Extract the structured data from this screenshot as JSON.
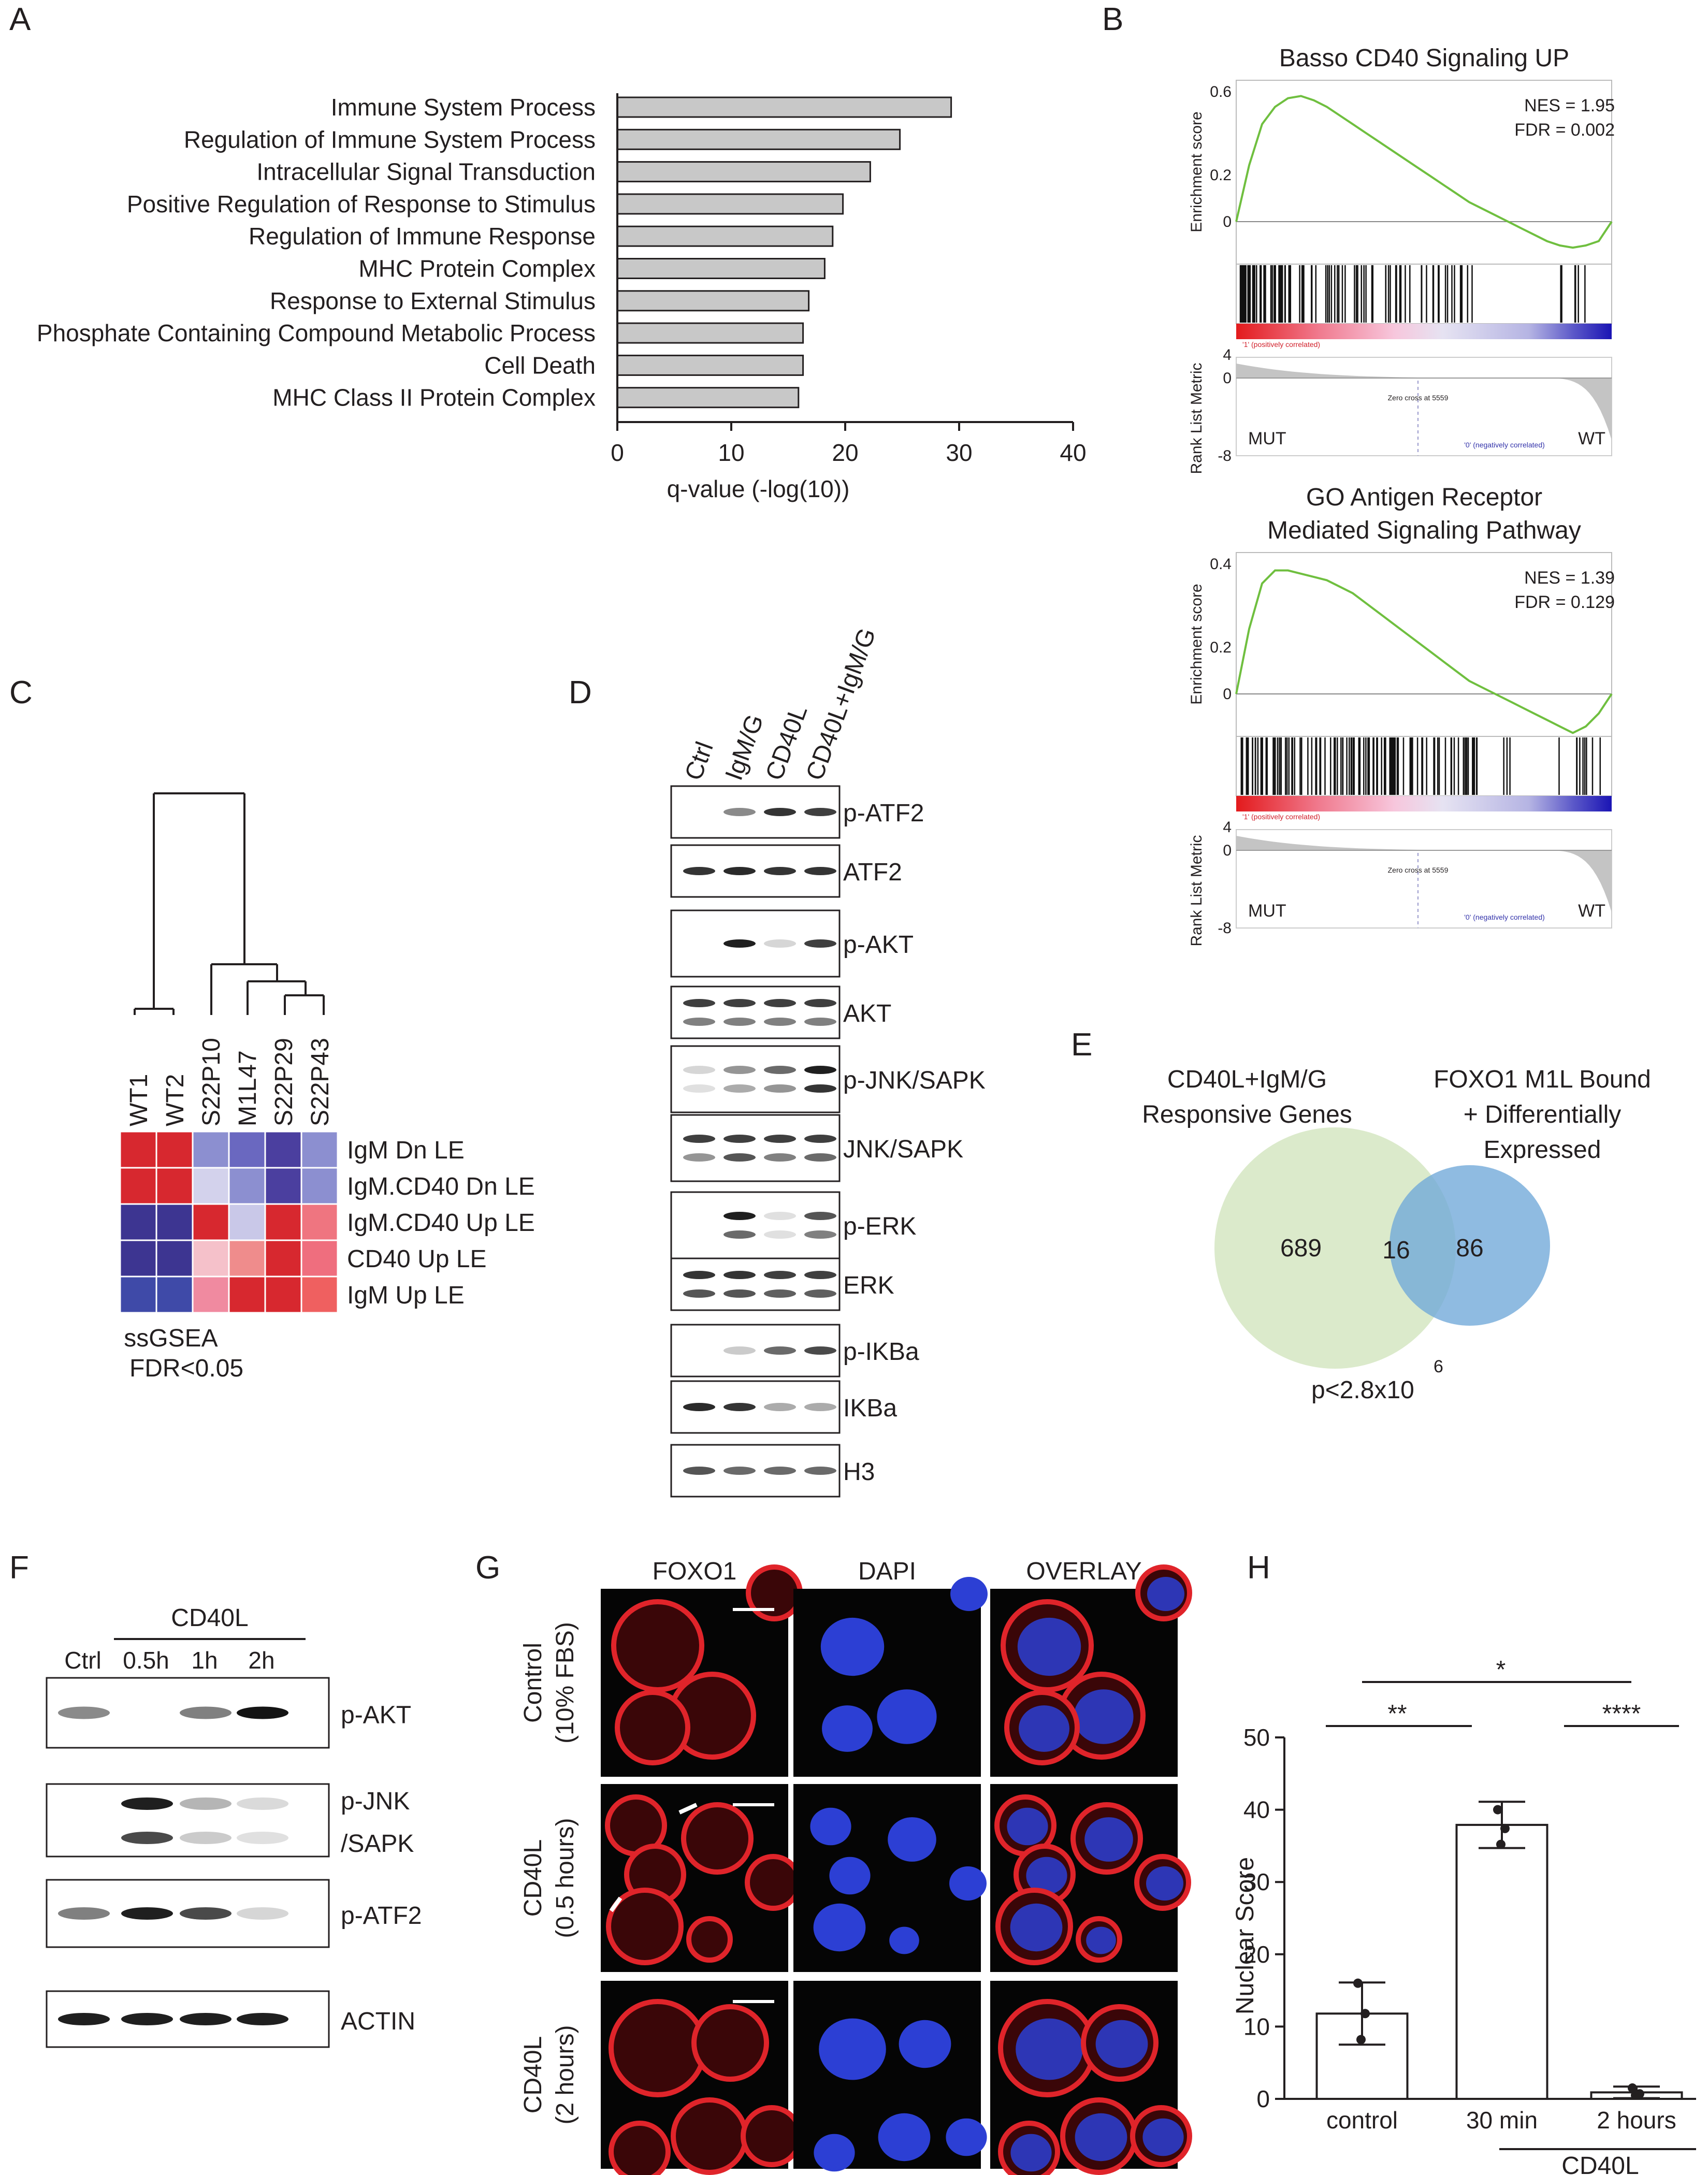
{
  "panel_labels": [
    "A",
    "B",
    "C",
    "D",
    "E",
    "F",
    "G",
    "H"
  ],
  "panel_a": {
    "xlabel": "q-value  (-log(10))",
    "chart_data": {
      "type": "bar",
      "orientation": "horizontal",
      "categories": [
        "Immune System Process",
        "Regulation of Immune System Process",
        "Intracellular Signal Transduction",
        "Positive Regulation of Response to Stimulus",
        "Regulation of Immune Response",
        "MHC Protein Complex",
        "Response to External Stimulus",
        "Phosphate Containing Compound Metabolic Process",
        "Cell Death",
        "MHC Class II Protein Complex"
      ],
      "values": [
        29.3,
        24.8,
        22.2,
        19.8,
        18.9,
        18.2,
        16.8,
        16.3,
        16.3,
        15.9
      ],
      "xlabel": "q-value  (-log(10))",
      "xlim": [
        0,
        40
      ],
      "xticks": [
        "0",
        "10",
        "20",
        "30",
        "40"
      ],
      "bar_color": "#c8c8c8"
    }
  },
  "panel_b": {
    "plots": [
      {
        "title_lines": [
          "Basso CD40 Signaling UP"
        ],
        "nes": "NES = 1.95",
        "fdr": "FDR = 0.002",
        "es_label": "Enrichment score",
        "es_ticks": [
          "0.6",
          "0.2",
          "0"
        ],
        "es_max": 0.6,
        "rank_label": "Rank List Metric",
        "rank_ticks": [
          "4",
          "0",
          "-8"
        ],
        "pos_label": "'1' (positively correlated)",
        "neg_label": "'0' (negatively correlated)",
        "zero_cross": "Zero cross at 5559",
        "left": "MUT",
        "right": "WT",
        "curve_es": [
          0,
          0.26,
          0.45,
          0.53,
          0.57,
          0.58,
          0.56,
          0.53,
          0.49,
          0.45,
          0.41,
          0.37,
          0.33,
          0.29,
          0.25,
          0.21,
          0.17,
          0.13,
          0.09,
          0.06,
          0.03,
          0.0,
          -0.03,
          -0.06,
          -0.09,
          -0.11,
          -0.12,
          -0.11,
          -0.09,
          0.0
        ],
        "curve_color": "#6fbf3f"
      },
      {
        "title_lines": [
          "GO Antigen Receptor",
          "Mediated Signaling Pathway"
        ],
        "nes": "NES = 1.39",
        "fdr": "FDR = 0.129",
        "es_label": "Enrichment score",
        "es_ticks": [
          "0.4",
          "0.2",
          "0"
        ],
        "es_max": 0.4,
        "rank_label": "Rank List Metric",
        "rank_ticks": [
          "4",
          "0",
          "-8"
        ],
        "pos_label": "'1' (positively correlated)",
        "neg_label": "'0' (negatively correlated)",
        "zero_cross": "Zero cross at 5559",
        "left": "MUT",
        "right": "WT",
        "curve_es": [
          0,
          0.2,
          0.34,
          0.38,
          0.38,
          0.37,
          0.36,
          0.35,
          0.33,
          0.31,
          0.28,
          0.25,
          0.22,
          0.19,
          0.16,
          0.13,
          0.1,
          0.07,
          0.04,
          0.02,
          0.0,
          -0.02,
          -0.04,
          -0.06,
          -0.08,
          -0.1,
          -0.12,
          -0.1,
          -0.06,
          0.0
        ],
        "curve_color": "#6fbf3f"
      }
    ]
  },
  "panel_c": {
    "columns": [
      "WT1",
      "WT2",
      "S22P10",
      "M1L47",
      "S22P29",
      "S22P43"
    ],
    "rows": [
      "IgM Dn LE",
      "IgM.CD40 Dn LE",
      "IgM.CD40 Up LE",
      "CD40 Up LE",
      "IgM Up LE"
    ],
    "heat_colors": [
      [
        "#d7282f",
        "#d7282f",
        "#8c8fd0",
        "#6a68c0",
        "#4b3f9f",
        "#8c8fd0"
      ],
      [
        "#d7282f",
        "#d7282f",
        "#d3d2ec",
        "#8c8fd0",
        "#4b3f9f",
        "#8c8fd0"
      ],
      [
        "#3d3591",
        "#3d3591",
        "#d7282f",
        "#c9c8e8",
        "#d7282f",
        "#ef7580"
      ],
      [
        "#3d3591",
        "#3d3591",
        "#f5c1ca",
        "#ef8c8c",
        "#d7282f",
        "#ef6e7e"
      ],
      [
        "#3f4aa8",
        "#3f4aa8",
        "#f08aa0",
        "#d7282f",
        "#d7282f",
        "#ef6060"
      ]
    ],
    "caption_lines": [
      "ssGSEA",
      "FDR<0.05"
    ]
  },
  "panel_d": {
    "lanes": [
      "Ctrl",
      "IgM/G",
      "CD40L",
      "CD40L+IgM/G"
    ],
    "blots": [
      {
        "label": "p-ATF2",
        "bands": [
          [
            0,
            0.45,
            0.85,
            0.8
          ]
        ]
      },
      {
        "label": "ATF2",
        "bands": [
          [
            0.85,
            0.9,
            0.85,
            0.85
          ]
        ]
      },
      {
        "label": "p-AKT",
        "bands": [
          [
            0,
            0.95,
            0.1,
            0.8
          ]
        ]
      },
      {
        "label": "AKT",
        "bands": [
          [
            0.8,
            0.8,
            0.8,
            0.8
          ],
          [
            0.5,
            0.5,
            0.5,
            0.5
          ]
        ]
      },
      {
        "label": "p-JNK/SAPK",
        "bands": [
          [
            0.1,
            0.4,
            0.6,
            0.95
          ],
          [
            0.05,
            0.3,
            0.4,
            0.85
          ]
        ]
      },
      {
        "label": "JNK/SAPK",
        "bands": [
          [
            0.8,
            0.8,
            0.8,
            0.8
          ],
          [
            0.4,
            0.7,
            0.5,
            0.6
          ]
        ]
      },
      {
        "label": "p-ERK",
        "bands": [
          [
            0,
            0.95,
            0.05,
            0.7
          ],
          [
            0,
            0.6,
            0.05,
            0.5
          ]
        ]
      },
      {
        "label": "ERK",
        "bands": [
          [
            0.85,
            0.85,
            0.8,
            0.8
          ],
          [
            0.7,
            0.7,
            0.65,
            0.65
          ]
        ]
      },
      {
        "label": "p-IKBa",
        "bands": [
          [
            0,
            0.15,
            0.6,
            0.75
          ]
        ]
      },
      {
        "label": "IKBa",
        "bands": [
          [
            0.9,
            0.85,
            0.3,
            0.3
          ]
        ]
      },
      {
        "label": "H3",
        "bands": [
          [
            0.7,
            0.6,
            0.6,
            0.6
          ]
        ]
      }
    ]
  },
  "panel_e": {
    "left_title_lines": [
      "CD40L+IgM/G",
      "Responsive Genes"
    ],
    "right_title_lines": [
      "FOXO1 M1L Bound",
      "+ Differentially",
      "Expressed"
    ],
    "left_only": "689",
    "overlap": "16",
    "right_only": "86",
    "pvalue": "p<2.8x10",
    "exponent": "6",
    "left_color": "#dbeacb",
    "right_color": "#6fa8d8"
  },
  "panel_f": {
    "group_label": "CD40L",
    "lanes": [
      "Ctrl",
      "0.5h",
      "1h",
      "2h"
    ],
    "blots": [
      {
        "label_lines": [
          "p-AKT"
        ],
        "bands": [
          [
            0.45,
            0,
            0.5,
            1.0
          ]
        ]
      },
      {
        "label_lines": [
          "p-JNK",
          "/SAPK"
        ],
        "bands": [
          [
            0,
            0.95,
            0.25,
            0.08
          ],
          [
            0,
            0.75,
            0.15,
            0.05
          ]
        ]
      },
      {
        "label_lines": [
          "p-ATF2"
        ],
        "bands": [
          [
            0.5,
            0.95,
            0.75,
            0.1
          ]
        ]
      },
      {
        "label_lines": [
          "ACTIN"
        ],
        "bands": [
          [
            0.95,
            0.95,
            0.95,
            0.95
          ]
        ]
      }
    ]
  },
  "panel_g": {
    "columns": [
      "FOXO1",
      "DAPI",
      "OVERLAY"
    ],
    "rows": [
      {
        "label_lines": [
          "Control",
          "(10% FBS)"
        ]
      },
      {
        "label_lines": [
          "CD40L",
          "(0.5 hours)"
        ]
      },
      {
        "label_lines": [
          "CD40L",
          "(2 hours)"
        ]
      }
    ],
    "foxo1_color": "#e0242a",
    "dapi_color": "#2c3fd4"
  },
  "panel_h": {
    "ylabel": "Nuclear Score",
    "group_label": "CD40L",
    "significance": [
      "*",
      "**",
      "****"
    ],
    "chart_data": {
      "type": "bar",
      "categories": [
        "control",
        "30 min",
        "2 hours"
      ],
      "values": [
        11.8,
        37.9,
        0.9
      ],
      "errors": [
        4.3,
        3.2,
        0.8
      ],
      "points": [
        [
          16.0,
          11.8,
          8.2
        ],
        [
          40.0,
          37.4,
          35.2
        ],
        [
          1.5,
          0.7,
          0.5
        ]
      ],
      "ylabel": "Nuclear Score",
      "ylim": [
        0,
        50
      ],
      "yticks": [
        "0",
        "10",
        "20",
        "30",
        "40",
        "50"
      ]
    }
  }
}
